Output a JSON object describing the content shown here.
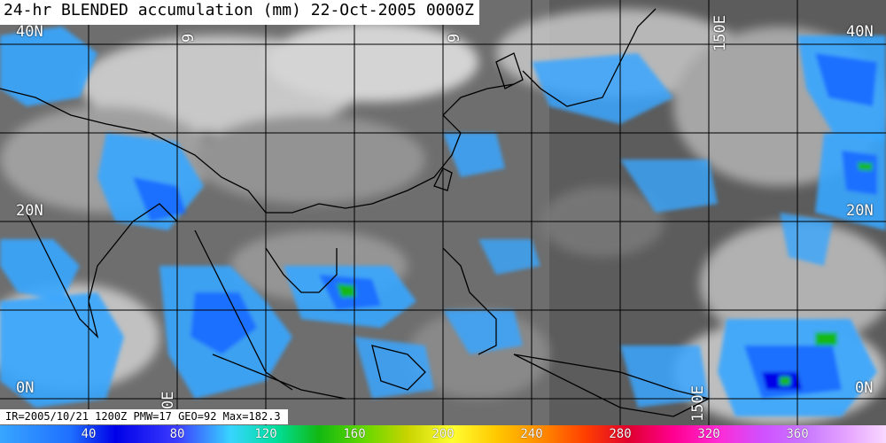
{
  "title": "24-hr BLENDED accumulation (mm) 22-Oct-2005 0000Z",
  "info": "IR=2005/10/21 1200Z PMW=17 GEO=92 Max=182.3",
  "lat_labels": {
    "n40_left": "40N",
    "n20_left": "20N",
    "eq_left": "0N",
    "n40_right": "40N",
    "n20_right": "20N",
    "eq_right": "0N"
  },
  "lon_labels": {
    "top_left": "9",
    "top_mid": "9",
    "top_right": "150E",
    "bottom_left": "0E",
    "bottom_right": "150E"
  },
  "colorbar": {
    "ticks": [
      "40",
      "80",
      "120",
      "160",
      "200",
      "240",
      "280",
      "320",
      "360"
    ],
    "units": "mm"
  },
  "colors": {
    "light_rain": "#38a6ff",
    "moderate_rain": "#1e6fff",
    "heavy_rain": "#0000e8",
    "extreme_rain": "#12b812",
    "coastline": "#000000",
    "grid": "#000000"
  }
}
